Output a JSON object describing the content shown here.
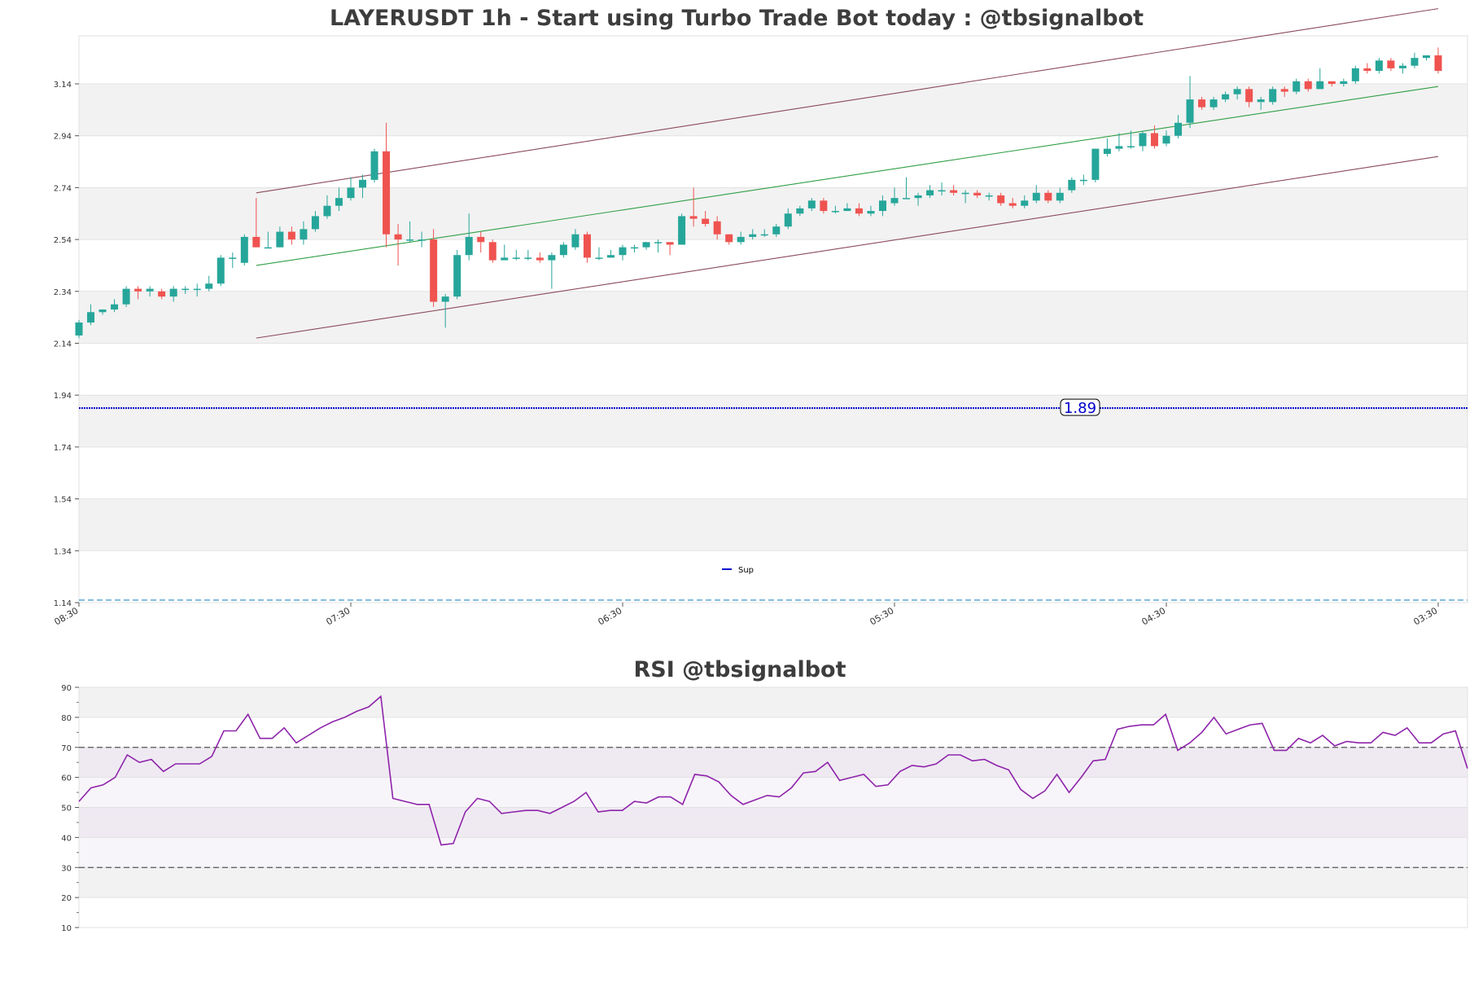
{
  "chart_data": [
    {
      "type": "candlestick",
      "title": "LAYERUSDT 1h - Start using Turbo Trade Bot today : @tbsignalbot",
      "ylim": [
        1.14,
        3.34
      ],
      "y_ticks": [
        "3.14",
        "2.94",
        "2.74",
        "2.54",
        "2.34",
        "2.14",
        "1.94",
        "1.74",
        "1.54",
        "1.34",
        "1.14"
      ],
      "x_ticks": [
        "08:30",
        "07:30",
        "06:30",
        "05:30",
        "04:30",
        "03:30"
      ],
      "x_tick_index": [
        0,
        23,
        46,
        69,
        92,
        115
      ],
      "grid": "banded",
      "colors": {
        "up": "#26a69a",
        "down": "#ef5350",
        "channel": "#8b4a5a",
        "midline": "#2f9e44",
        "support": "#0000cc",
        "lower_dash": "#5aa7d6"
      },
      "candles": [
        [
          2.17,
          2.22,
          2.23,
          2.16
        ],
        [
          2.22,
          2.26,
          2.29,
          2.21
        ],
        [
          2.26,
          2.27,
          2.27,
          2.25
        ],
        [
          2.27,
          2.29,
          2.31,
          2.26
        ],
        [
          2.29,
          2.35,
          2.36,
          2.28
        ],
        [
          2.35,
          2.34,
          2.36,
          2.31
        ],
        [
          2.34,
          2.35,
          2.36,
          2.32
        ],
        [
          2.34,
          2.32,
          2.35,
          2.31
        ],
        [
          2.32,
          2.35,
          2.36,
          2.3
        ],
        [
          2.35,
          2.35,
          2.36,
          2.33
        ],
        [
          2.35,
          2.35,
          2.37,
          2.32
        ],
        [
          2.35,
          2.37,
          2.4,
          2.34
        ],
        [
          2.37,
          2.47,
          2.48,
          2.36
        ],
        [
          2.47,
          2.47,
          2.49,
          2.43
        ],
        [
          2.45,
          2.55,
          2.56,
          2.44
        ],
        [
          2.55,
          2.51,
          2.7,
          2.51
        ],
        [
          2.51,
          2.51,
          2.57,
          2.51
        ],
        [
          2.51,
          2.57,
          2.59,
          2.51
        ],
        [
          2.57,
          2.54,
          2.59,
          2.52
        ],
        [
          2.54,
          2.58,
          2.61,
          2.52
        ],
        [
          2.58,
          2.63,
          2.65,
          2.57
        ],
        [
          2.63,
          2.67,
          2.71,
          2.62
        ],
        [
          2.67,
          2.7,
          2.74,
          2.65
        ],
        [
          2.7,
          2.74,
          2.78,
          2.69
        ],
        [
          2.74,
          2.77,
          2.79,
          2.7
        ],
        [
          2.77,
          2.88,
          2.89,
          2.76
        ],
        [
          2.88,
          2.56,
          2.99,
          2.51
        ],
        [
          2.56,
          2.54,
          2.6,
          2.44
        ],
        [
          2.54,
          2.54,
          2.61,
          2.53
        ],
        [
          2.54,
          2.54,
          2.57,
          2.51
        ],
        [
          2.54,
          2.3,
          2.58,
          2.28
        ],
        [
          2.3,
          2.32,
          2.33,
          2.2
        ],
        [
          2.32,
          2.48,
          2.5,
          2.31
        ],
        [
          2.48,
          2.55,
          2.64,
          2.46
        ],
        [
          2.55,
          2.53,
          2.57,
          2.49
        ],
        [
          2.53,
          2.46,
          2.54,
          2.45
        ],
        [
          2.46,
          2.47,
          2.52,
          2.46
        ],
        [
          2.47,
          2.47,
          2.5,
          2.46
        ],
        [
          2.47,
          2.47,
          2.5,
          2.46
        ],
        [
          2.47,
          2.46,
          2.49,
          2.45
        ],
        [
          2.46,
          2.48,
          2.49,
          2.35
        ],
        [
          2.48,
          2.52,
          2.53,
          2.47
        ],
        [
          2.51,
          2.56,
          2.58,
          2.5
        ],
        [
          2.56,
          2.47,
          2.57,
          2.45
        ],
        [
          2.47,
          2.47,
          2.51,
          2.46
        ],
        [
          2.47,
          2.48,
          2.5,
          2.47
        ],
        [
          2.48,
          2.51,
          2.52,
          2.46
        ],
        [
          2.51,
          2.51,
          2.52,
          2.49
        ],
        [
          2.51,
          2.53,
          2.53,
          2.5
        ],
        [
          2.53,
          2.53,
          2.54,
          2.49
        ],
        [
          2.53,
          2.52,
          2.53,
          2.48
        ],
        [
          2.52,
          2.63,
          2.64,
          2.52
        ],
        [
          2.63,
          2.62,
          2.74,
          2.59
        ],
        [
          2.62,
          2.6,
          2.65,
          2.59
        ],
        [
          2.61,
          2.56,
          2.63,
          2.54
        ],
        [
          2.56,
          2.53,
          2.56,
          2.52
        ],
        [
          2.53,
          2.55,
          2.57,
          2.52
        ],
        [
          2.55,
          2.56,
          2.58,
          2.54
        ],
        [
          2.56,
          2.56,
          2.58,
          2.55
        ],
        [
          2.56,
          2.59,
          2.6,
          2.55
        ],
        [
          2.59,
          2.64,
          2.66,
          2.58
        ],
        [
          2.64,
          2.66,
          2.67,
          2.63
        ],
        [
          2.66,
          2.69,
          2.7,
          2.65
        ],
        [
          2.69,
          2.65,
          2.7,
          2.64
        ],
        [
          2.65,
          2.65,
          2.67,
          2.64
        ],
        [
          2.65,
          2.66,
          2.68,
          2.65
        ],
        [
          2.66,
          2.64,
          2.68,
          2.63
        ],
        [
          2.64,
          2.65,
          2.67,
          2.63
        ],
        [
          2.65,
          2.69,
          2.71,
          2.63
        ],
        [
          2.68,
          2.7,
          2.74,
          2.67
        ],
        [
          2.7,
          2.7,
          2.78,
          2.7
        ],
        [
          2.7,
          2.71,
          2.72,
          2.67
        ],
        [
          2.71,
          2.73,
          2.75,
          2.7
        ],
        [
          2.73,
          2.73,
          2.76,
          2.71
        ],
        [
          2.73,
          2.72,
          2.75,
          2.71
        ],
        [
          2.72,
          2.72,
          2.73,
          2.68
        ],
        [
          2.72,
          2.71,
          2.73,
          2.7
        ],
        [
          2.71,
          2.71,
          2.72,
          2.69
        ],
        [
          2.71,
          2.68,
          2.72,
          2.67
        ],
        [
          2.68,
          2.67,
          2.7,
          2.66
        ],
        [
          2.67,
          2.69,
          2.71,
          2.66
        ],
        [
          2.69,
          2.72,
          2.75,
          2.68
        ],
        [
          2.72,
          2.69,
          2.73,
          2.68
        ],
        [
          2.69,
          2.72,
          2.74,
          2.68
        ],
        [
          2.73,
          2.77,
          2.78,
          2.72
        ],
        [
          2.77,
          2.77,
          2.79,
          2.75
        ],
        [
          2.77,
          2.89,
          2.89,
          2.76
        ],
        [
          2.87,
          2.89,
          2.93,
          2.86
        ],
        [
          2.89,
          2.9,
          2.95,
          2.88
        ],
        [
          2.9,
          2.9,
          2.96,
          2.89
        ],
        [
          2.9,
          2.95,
          2.96,
          2.88
        ],
        [
          2.95,
          2.9,
          2.98,
          2.89
        ],
        [
          2.91,
          2.94,
          2.96,
          2.9
        ],
        [
          2.94,
          2.99,
          3.02,
          2.93
        ],
        [
          2.99,
          3.08,
          3.17,
          2.97
        ],
        [
          3.08,
          3.05,
          3.09,
          3.04
        ],
        [
          3.05,
          3.08,
          3.09,
          3.04
        ],
        [
          3.08,
          3.1,
          3.11,
          3.07
        ],
        [
          3.1,
          3.12,
          3.13,
          3.08
        ],
        [
          3.12,
          3.07,
          3.13,
          3.05
        ],
        [
          3.07,
          3.08,
          3.09,
          3.04
        ],
        [
          3.07,
          3.12,
          3.13,
          3.06
        ],
        [
          3.12,
          3.11,
          3.13,
          3.09
        ],
        [
          3.11,
          3.15,
          3.16,
          3.1
        ],
        [
          3.15,
          3.12,
          3.16,
          3.11
        ],
        [
          3.12,
          3.15,
          3.2,
          3.12
        ],
        [
          3.15,
          3.14,
          3.15,
          3.13
        ],
        [
          3.14,
          3.15,
          3.16,
          3.13
        ],
        [
          3.15,
          3.2,
          3.21,
          3.14
        ],
        [
          3.2,
          3.19,
          3.22,
          3.18
        ],
        [
          3.19,
          3.23,
          3.24,
          3.18
        ],
        [
          3.23,
          3.2,
          3.24,
          3.19
        ],
        [
          3.2,
          3.21,
          3.22,
          3.18
        ],
        [
          3.21,
          3.24,
          3.26,
          3.2
        ],
        [
          3.24,
          3.25,
          3.25,
          3.23
        ],
        [
          3.25,
          3.19,
          3.28,
          3.18
        ]
      ],
      "channel_upper": {
        "x_index": [
          15,
          115
        ],
        "y": [
          2.72,
          3.43
        ]
      },
      "channel_mid": {
        "x_index": [
          15,
          115
        ],
        "y": [
          2.44,
          3.13
        ]
      },
      "channel_lower": {
        "x_index": [
          15,
          115
        ],
        "y": [
          2.16,
          2.86
        ]
      },
      "support_value": 1.89,
      "support_label": "1.89",
      "lower_dashed_value": 1.15,
      "legend": {
        "label": "Sup",
        "placement": "bottom-center"
      }
    },
    {
      "type": "line",
      "title": "RSI @tbsignalbot",
      "ylim": [
        10,
        90
      ],
      "y_ticks": [
        "90",
        "80",
        "70",
        "60",
        "50",
        "40",
        "30",
        "20",
        "10"
      ],
      "overbought": 70,
      "oversold": 30,
      "line_color": "#8e24aa",
      "values": [
        52,
        56.5,
        57.5,
        60,
        67.5,
        65,
        66,
        62,
        64.5,
        64.5,
        64.5,
        67,
        75.5,
        75.5,
        81,
        73,
        73,
        76.5,
        71.5,
        74,
        76.5,
        78.5,
        80,
        82,
        83.5,
        87,
        53,
        52,
        51,
        51,
        37.5,
        38,
        48.5,
        53,
        52,
        48,
        48.5,
        49,
        49,
        48,
        50,
        52,
        55,
        48.5,
        49,
        49,
        52,
        51.5,
        53.5,
        53.5,
        51,
        61,
        60.5,
        58.5,
        54,
        51,
        52.5,
        54,
        53.5,
        56.5,
        61.5,
        62,
        65,
        59,
        60,
        61,
        57,
        57.5,
        62,
        64,
        63.5,
        64.5,
        67.5,
        67.5,
        65.5,
        66,
        64,
        62.5,
        56,
        53,
        55.5,
        61,
        55,
        60,
        65.5,
        66,
        76,
        77,
        77.5,
        77.5,
        81,
        69,
        71.5,
        75,
        80,
        74.5,
        76,
        77.5,
        78,
        69,
        69,
        73,
        71.5,
        74,
        70.5,
        72,
        71.5,
        71.5,
        75,
        74,
        76.5,
        71.5,
        71.5,
        74.5,
        75.5,
        63
      ]
    }
  ]
}
